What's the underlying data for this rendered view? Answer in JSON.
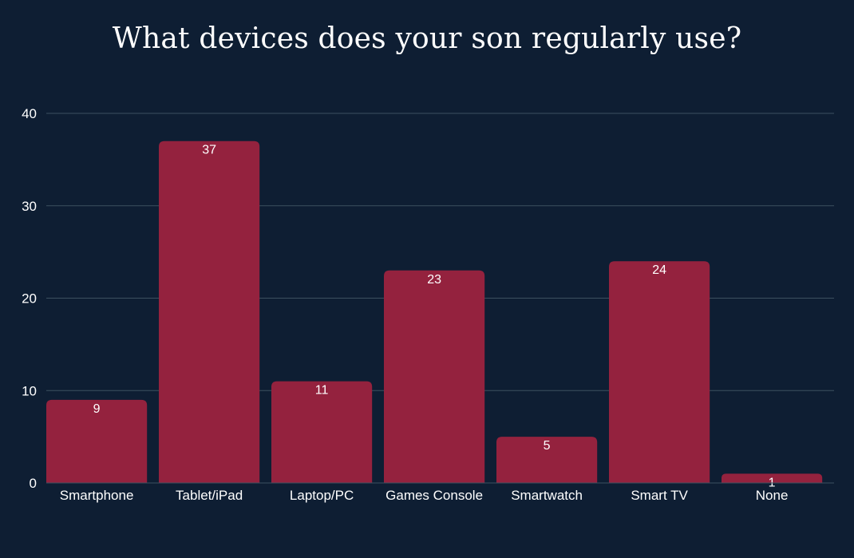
{
  "chart_data": {
    "type": "bar",
    "title": "What devices does your son regularly use?",
    "categories": [
      "Smartphone",
      "Tablet/iPad",
      "Laptop/PC",
      "Games Console",
      "Smartwatch",
      "Smart TV",
      "None"
    ],
    "values": [
      9,
      37,
      11,
      23,
      5,
      24,
      1
    ],
    "ylim": [
      0,
      40
    ],
    "yticks": [
      0,
      10,
      20,
      30,
      40
    ],
    "grid": true,
    "data_labels": true,
    "colors": {
      "background": "#0e1e33",
      "bar": "#94223e",
      "grid": "#3c5060",
      "text": "#ffffff"
    }
  }
}
